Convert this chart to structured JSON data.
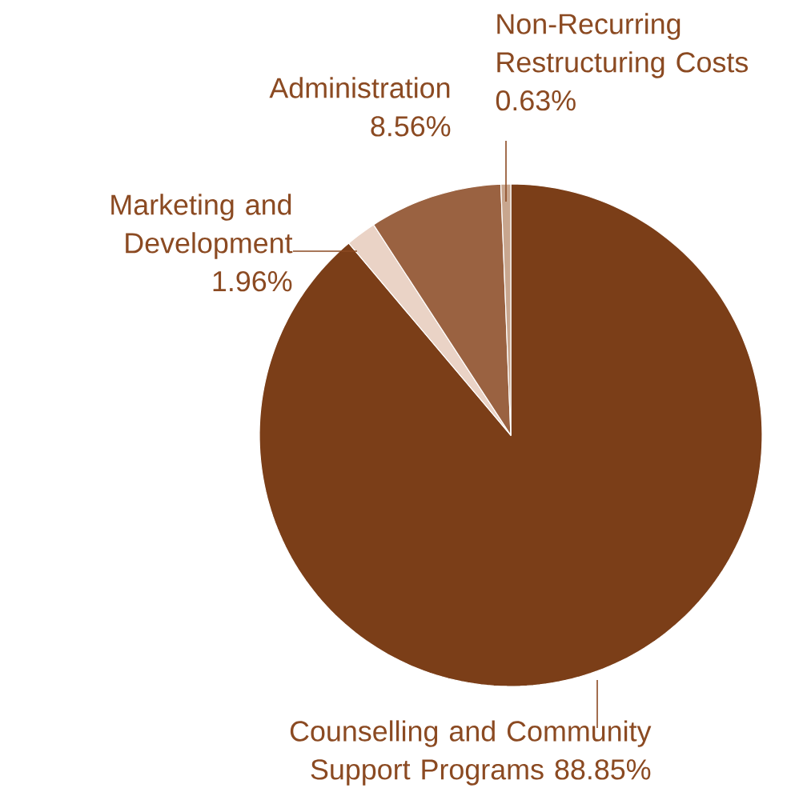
{
  "chart_data": {
    "type": "pie",
    "categories": [
      "Counselling and Community Support Programs",
      "Marketing and Development",
      "Administration",
      "Non-Recurring Restructuring Costs"
    ],
    "values": [
      88.85,
      1.96,
      8.56,
      0.63
    ],
    "value_labels": [
      "88.85%",
      "1.96%",
      "8.56%",
      "0.63%"
    ],
    "colors": [
      "#7b3e18",
      "#ead3c6",
      "#9a6241",
      "#c8a68e"
    ]
  }
}
